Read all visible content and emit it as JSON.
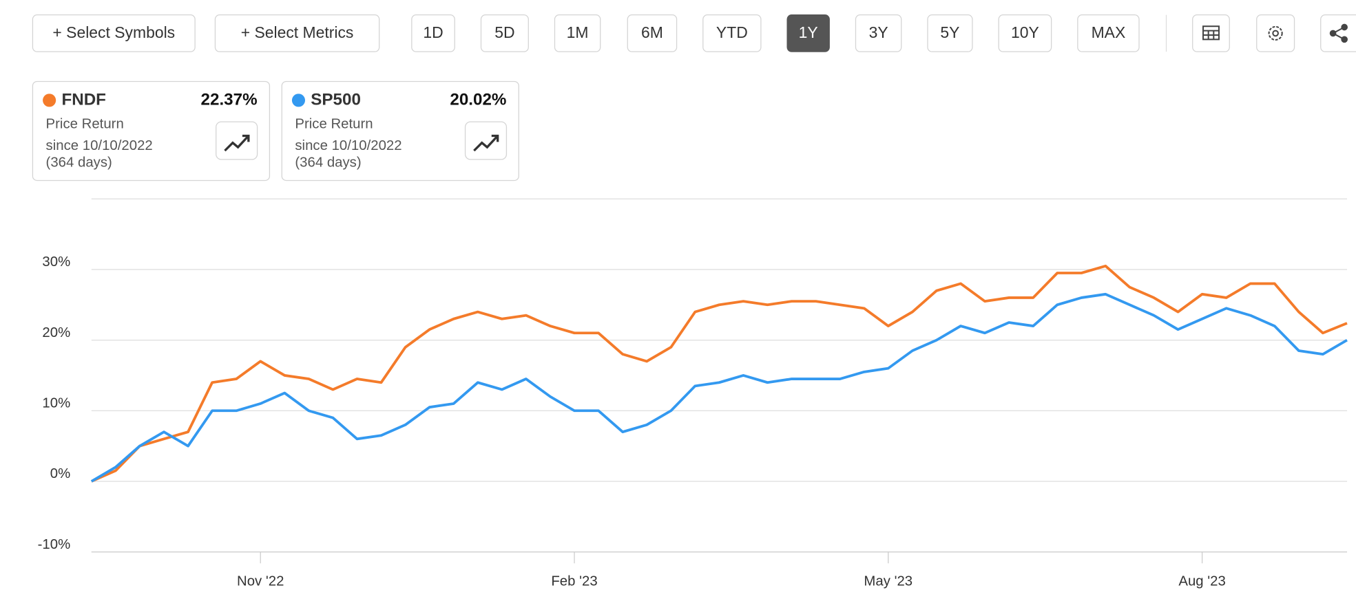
{
  "toolbar": {
    "symbols_button": "+ Select Symbols",
    "metrics_button": "+ Select Metrics",
    "ranges": [
      "1D",
      "5D",
      "1M",
      "6M",
      "YTD",
      "1Y",
      "3Y",
      "5Y",
      "10Y",
      "MAX"
    ],
    "active_range": 5
  },
  "cards": [
    {
      "name": "FNDF",
      "value": "22.37%",
      "label": "Price Return",
      "since": "since 10/10/2022",
      "days": "(364 days)"
    },
    {
      "name": "SP500",
      "value": "20.02%",
      "label": "Price Return",
      "since": "since 10/10/2022",
      "days": "(364 days)"
    }
  ],
  "chart_data": {
    "type": "line",
    "categories": [
      null,
      null,
      null,
      null,
      null,
      null,
      null,
      "Nov '22",
      null,
      null,
      null,
      null,
      null,
      null,
      null,
      null,
      null,
      null,
      null,
      null,
      "Feb '23",
      null,
      null,
      null,
      null,
      null,
      null,
      null,
      null,
      null,
      null,
      null,
      null,
      "May '23",
      null,
      null,
      null,
      null,
      null,
      null,
      null,
      null,
      null,
      null,
      null,
      null,
      "Aug '23",
      null,
      null,
      null,
      null,
      null,
      null
    ],
    "series": [
      {
        "name": "FNDF",
        "color": "#f47b2a",
        "values": [
          0,
          1.5,
          5,
          6,
          7,
          14,
          14.5,
          17,
          15,
          14.5,
          13,
          14.5,
          14,
          19,
          21.5,
          23,
          24,
          23,
          23.5,
          22,
          21,
          21,
          18,
          17,
          19,
          24,
          25,
          25.5,
          25,
          25.5,
          25.5,
          25,
          24.5,
          22,
          24,
          27,
          28,
          25.5,
          26,
          26,
          29.5,
          29.5,
          30.5,
          27.5,
          26,
          24,
          26.5,
          26,
          28,
          28,
          24,
          21,
          22.4
        ]
      },
      {
        "name": "SP500",
        "color": "#3399f0",
        "values": [
          0,
          2,
          5,
          7,
          5,
          10,
          10,
          11,
          12.5,
          10,
          9,
          6,
          6.5,
          8,
          10.5,
          11,
          14,
          13,
          14.5,
          12,
          10,
          10,
          7,
          8,
          10,
          13.5,
          14,
          15,
          14,
          14.5,
          14.5,
          14.5,
          15.5,
          16,
          18.5,
          20,
          22,
          21,
          22.5,
          22,
          25,
          26,
          26.5,
          25,
          23.5,
          21.5,
          23,
          24.5,
          23.5,
          22,
          18.5,
          18,
          20
        ]
      }
    ],
    "ylim": [
      -10,
      40
    ],
    "yticks": [
      {
        "value": -10,
        "label": "-10%"
      },
      {
        "value": 0,
        "label": "0%"
      },
      {
        "value": 10,
        "label": "10%"
      },
      {
        "value": 20,
        "label": "20%"
      },
      {
        "value": 30,
        "label": "30%"
      }
    ],
    "grid": true
  }
}
